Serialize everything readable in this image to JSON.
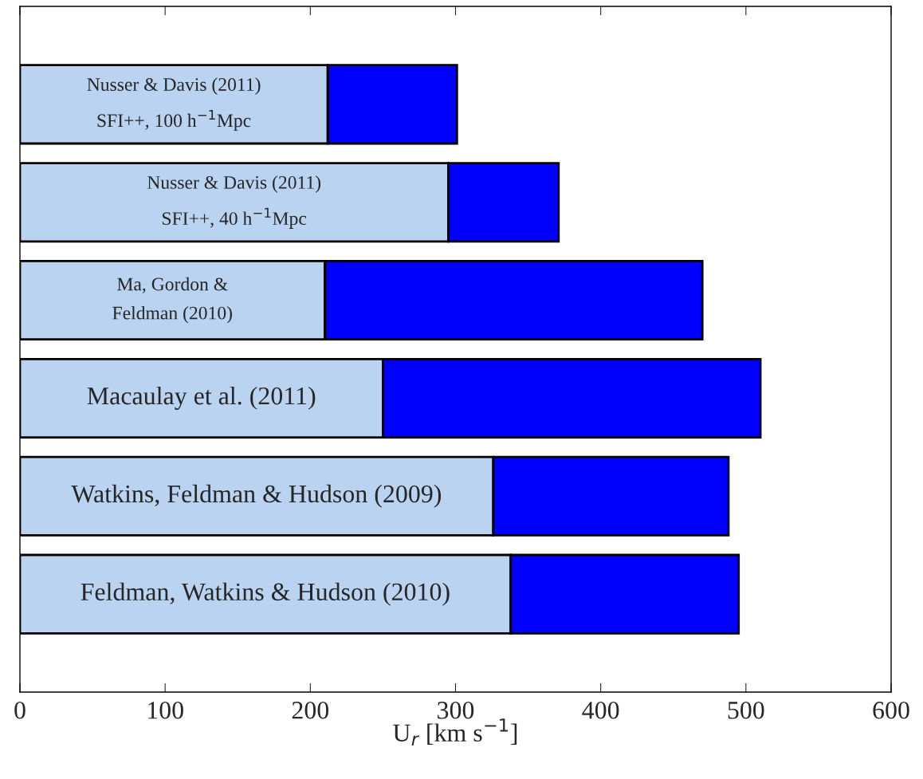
{
  "chart_data": {
    "type": "bar",
    "orientation": "horizontal",
    "stacked": true,
    "categories": [
      "Nusser & Davis (2011)\nSFI++, 100 h$^{−1}$Mpc",
      "Nusser & Davis (2011)\nSFI++, 40 h$^{−1}$Mpc",
      "Ma, Gordon &\nFeldman (2010)",
      "Macaulay et al. (2011)",
      "Watkins, Feldman & Hudson (2009)",
      "Feldman, Watkins & Hudson (2010)"
    ],
    "series": [
      {
        "color": "#b9d3f0",
        "values": [
          212,
          295,
          210,
          250,
          326,
          338
        ]
      },
      {
        "color": "#0000ff",
        "values": [
          89,
          76,
          260,
          260,
          162,
          157
        ]
      }
    ],
    "xlabel": "U$_{r}$ [km s$^{−1}$]",
    "xlim": [
      0,
      600
    ],
    "xticks": [
      0,
      100,
      200,
      300,
      400,
      500,
      600
    ],
    "grid": false,
    "legend": false
  }
}
